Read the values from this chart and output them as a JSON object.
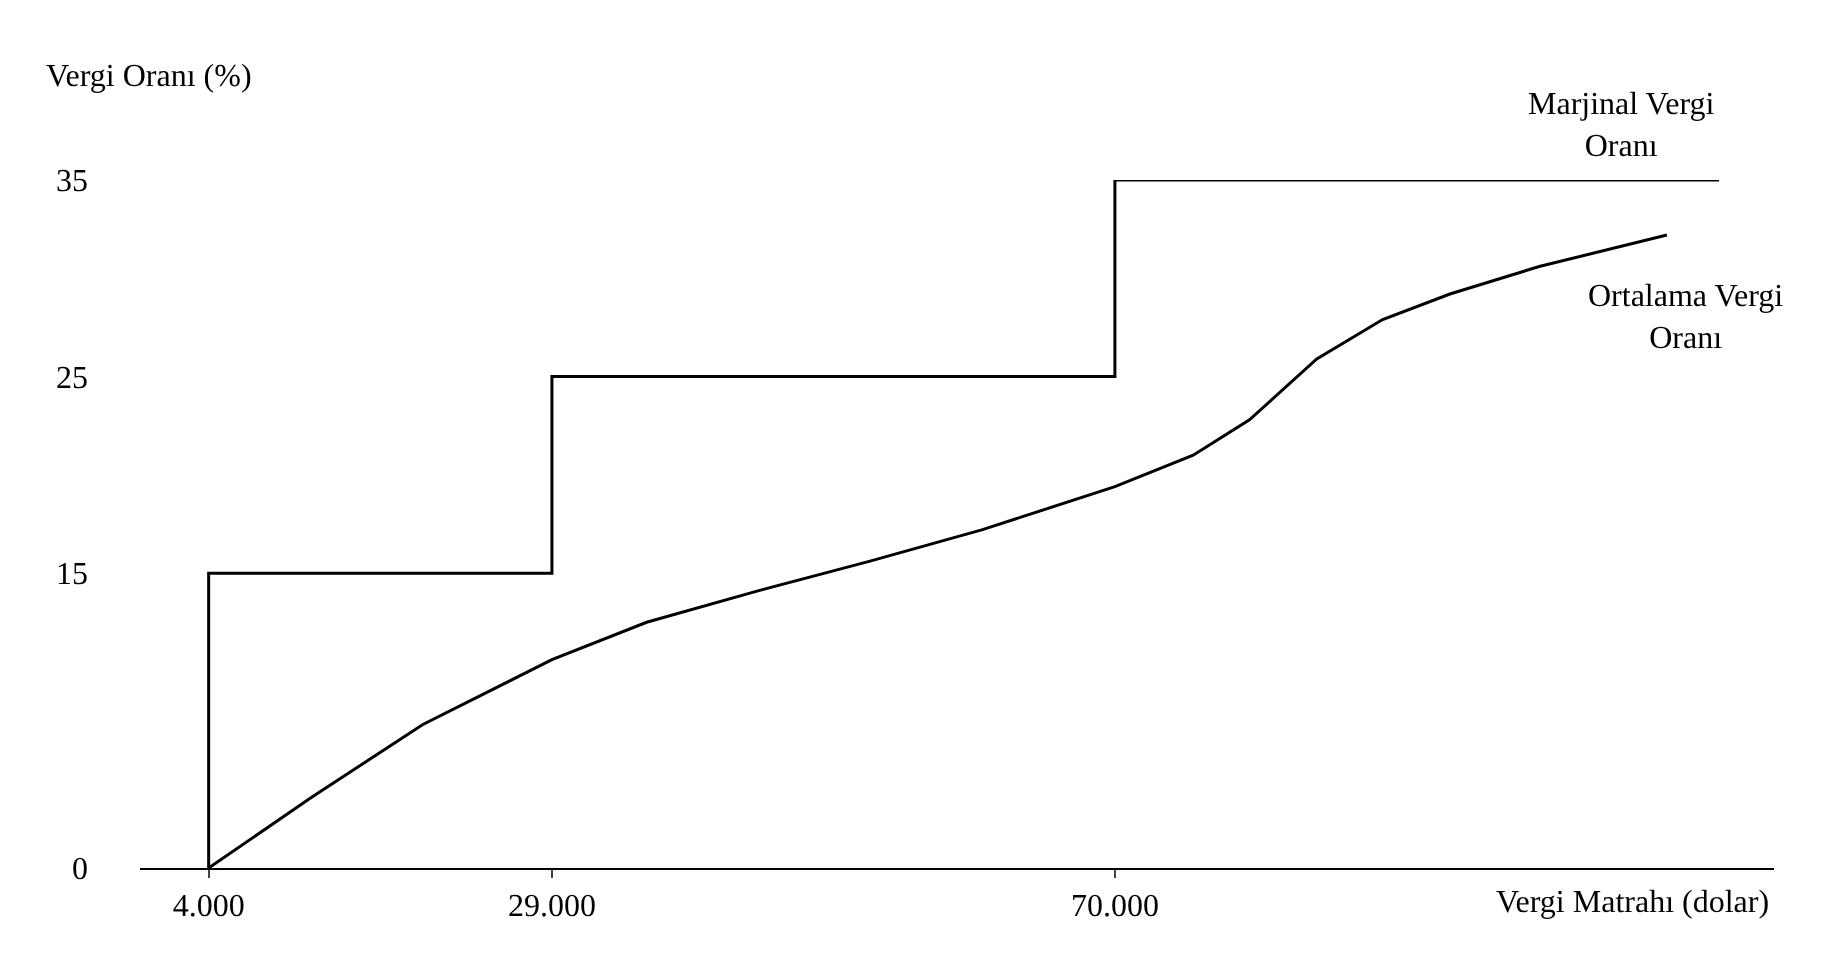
{
  "chart_data": {
    "type": "line",
    "xlabel": "Vergi Matrahı (dolar)",
    "ylabel": "Vergi Oranı (%)",
    "xlim": [
      -1000,
      118000
    ],
    "ylim": [
      0,
      35
    ],
    "xticks": [
      {
        "value": 4000,
        "label": "4.000"
      },
      {
        "value": 29000,
        "label": "29.000"
      },
      {
        "value": 70000,
        "label": "70.000"
      }
    ],
    "yticks": [
      0,
      15,
      25,
      35
    ],
    "series": [
      {
        "name": "Marjinal Vergi Oranı",
        "color": "#000000",
        "x": [
          4000,
          4000,
          29000,
          29000,
          70000,
          70000,
          114000
        ],
        "values": [
          0,
          15,
          15,
          25,
          25,
          35,
          35
        ]
      },
      {
        "name": "Ortalama Vergi Oranı",
        "color": "#000000",
        "x": [
          4000,
          11500,
          19600,
          29000,
          35900,
          44000,
          52100,
          60300,
          70000,
          75700,
          79800,
          84700,
          89500,
          94400,
          100900,
          110200
        ],
        "values": [
          0,
          3.6,
          7.3,
          10.6,
          12.5,
          14.1,
          15.6,
          17.2,
          19.4,
          21.0,
          22.8,
          25.9,
          27.9,
          29.2,
          30.6,
          32.2
        ]
      }
    ],
    "legend": false,
    "marker": "none",
    "line_style": "solid"
  }
}
